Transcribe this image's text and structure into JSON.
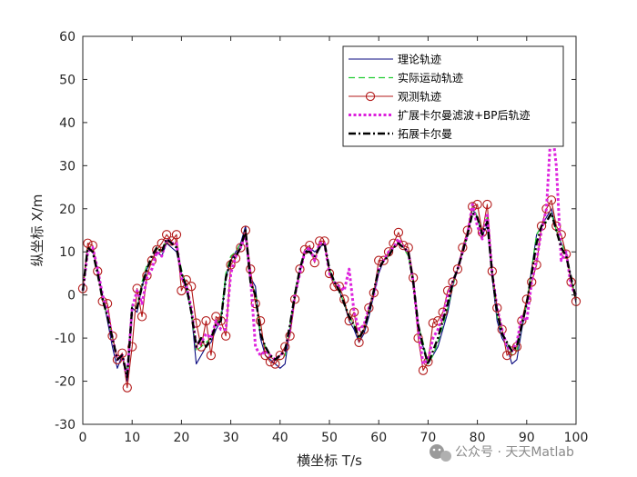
{
  "chart_data": {
    "type": "line",
    "xlabel": "横坐标 T/s",
    "ylabel": "纵坐标 X/m",
    "xlim": [
      0,
      100
    ],
    "ylim": [
      -30,
      60
    ],
    "xticks": [
      0,
      10,
      20,
      30,
      40,
      50,
      60,
      70,
      80,
      90,
      100
    ],
    "yticks": [
      -30,
      -20,
      -10,
      0,
      10,
      20,
      30,
      40,
      50,
      60
    ],
    "grid": false,
    "legend_position": "top-right",
    "series": [
      {
        "name": "理论轨迹",
        "color": "#0a0a80",
        "style": "solid",
        "x": [
          0,
          1,
          2,
          3,
          4,
          5,
          6,
          7,
          8,
          9,
          10,
          11,
          12,
          13,
          14,
          15,
          16,
          17,
          18,
          19,
          20,
          21,
          22,
          23,
          24,
          25,
          26,
          27,
          28,
          29,
          30,
          31,
          32,
          33,
          34,
          35,
          36,
          37,
          38,
          39,
          40,
          41,
          42,
          43,
          44,
          45,
          46,
          47,
          48,
          49,
          50,
          51,
          52,
          53,
          54,
          55,
          56,
          57,
          58,
          59,
          60,
          61,
          62,
          63,
          64,
          65,
          66,
          67,
          68,
          69,
          70,
          71,
          72,
          73,
          74,
          75,
          76,
          77,
          78,
          79,
          80,
          81,
          82,
          83,
          84,
          85,
          86,
          87,
          88,
          89,
          90,
          91,
          92,
          93,
          94,
          95,
          96,
          97,
          98,
          99,
          100
        ],
        "y": [
          2,
          11,
          10,
          6,
          0,
          -6,
          -12,
          -17,
          -14,
          -20,
          -3,
          -4,
          2,
          6,
          8,
          10,
          9,
          12,
          11,
          10,
          5,
          1,
          -4,
          -16,
          -14,
          -12,
          -11,
          -8,
          -6,
          4,
          8,
          10,
          12,
          16,
          4,
          2,
          -10,
          -14,
          -15,
          -16,
          -17,
          -16,
          -8,
          0,
          5,
          10,
          11,
          10,
          11,
          12,
          6,
          3,
          1,
          -2,
          -6,
          -8,
          -11,
          -9,
          -5,
          0,
          5,
          8,
          9,
          11,
          12,
          11,
          10,
          4,
          -8,
          -12,
          -16,
          -14,
          -12,
          -8,
          -4,
          2,
          6,
          10,
          14,
          20,
          18,
          14,
          16,
          4,
          -6,
          -10,
          -12,
          -16,
          -15,
          -8,
          -2,
          6,
          14,
          16,
          18,
          20,
          15,
          12,
          10,
          4,
          -2
        ]
      },
      {
        "name": "实际运动轨迹",
        "color": "#22cc33",
        "style": "dashed",
        "x": [
          0,
          1,
          2,
          3,
          4,
          5,
          6,
          7,
          8,
          9,
          10,
          11,
          12,
          13,
          14,
          15,
          16,
          17,
          18,
          19,
          20,
          21,
          22,
          23,
          24,
          25,
          26,
          27,
          28,
          29,
          30,
          31,
          32,
          33,
          34,
          35,
          36,
          37,
          38,
          39,
          40,
          41,
          42,
          43,
          44,
          45,
          46,
          47,
          48,
          49,
          50,
          51,
          52,
          53,
          54,
          55,
          56,
          57,
          58,
          59,
          60,
          61,
          62,
          63,
          64,
          65,
          66,
          67,
          68,
          69,
          70,
          71,
          72,
          73,
          74,
          75,
          76,
          77,
          78,
          79,
          80,
          81,
          82,
          83,
          84,
          85,
          86,
          87,
          88,
          89,
          90,
          91,
          92,
          93,
          94,
          95,
          96,
          97,
          98,
          99,
          100
        ],
        "y": [
          1,
          11,
          11,
          5,
          -1,
          -5,
          -10,
          -15,
          -14,
          -18,
          -2,
          -3,
          3,
          7,
          8,
          11,
          10,
          13,
          12,
          11,
          6,
          2,
          -4,
          -13,
          -12,
          -11,
          -10,
          -7,
          -5,
          5,
          9,
          10,
          12,
          14,
          2,
          1,
          -9,
          -12,
          -14,
          -15,
          -15,
          -14,
          -7,
          1,
          6,
          10,
          10,
          8,
          11,
          12,
          6,
          3,
          1,
          -2,
          -5,
          -7,
          -10,
          -8,
          -4,
          1,
          6,
          8,
          9,
          11,
          12,
          11,
          9,
          3,
          -7,
          -11,
          -16,
          -14,
          -11,
          -7,
          -3,
          2,
          6,
          10,
          14,
          21,
          18,
          15,
          18,
          5,
          -5,
          -9,
          -11,
          -14,
          -13,
          -7,
          -2,
          6,
          14,
          16,
          17,
          19,
          15,
          12,
          10,
          4,
          -1
        ]
      },
      {
        "name": "观测轨迹",
        "color": "#b31a1a",
        "style": "solid-circle",
        "x": [
          0,
          1,
          2,
          3,
          4,
          5,
          6,
          7,
          8,
          9,
          10,
          11,
          12,
          13,
          14,
          15,
          16,
          17,
          18,
          19,
          20,
          21,
          22,
          23,
          24,
          25,
          26,
          27,
          28,
          29,
          30,
          31,
          32,
          33,
          34,
          35,
          36,
          37,
          38,
          39,
          40,
          41,
          42,
          43,
          44,
          45,
          46,
          47,
          48,
          49,
          50,
          51,
          52,
          53,
          54,
          55,
          56,
          57,
          58,
          59,
          60,
          61,
          62,
          63,
          64,
          65,
          66,
          67,
          68,
          69,
          70,
          71,
          72,
          73,
          74,
          75,
          76,
          77,
          78,
          79,
          80,
          81,
          82,
          83,
          84,
          85,
          86,
          87,
          88,
          89,
          90,
          91,
          92,
          93,
          94,
          95,
          96,
          97,
          98,
          99,
          100
        ],
        "y": [
          1.5,
          12,
          11.5,
          5.5,
          -1.5,
          -2,
          -9.5,
          -15,
          -13.5,
          -21.5,
          -12,
          1.5,
          -5,
          4.5,
          8,
          10.5,
          12,
          14,
          12.5,
          14,
          1,
          3.5,
          2,
          -6.5,
          -12,
          -6,
          -14,
          -5,
          -6,
          -9.5,
          7,
          8.5,
          11,
          15,
          6,
          -2,
          -6,
          -14,
          -15.5,
          -16,
          -14,
          -12,
          -9.5,
          -1,
          6,
          10.5,
          11.5,
          7.5,
          12.5,
          12.5,
          5,
          2,
          2,
          -1,
          -6,
          -4,
          -11,
          -8,
          -3,
          0.5,
          8,
          8,
          10,
          12,
          14.5,
          11.5,
          11,
          4,
          -10,
          -17.5,
          -15.5,
          -6.5,
          -6,
          -4,
          1,
          3,
          6,
          11,
          15,
          20.5,
          21,
          14.5,
          21,
          5.5,
          -3,
          -8,
          -14,
          -13,
          -12,
          -6,
          -1,
          3,
          7,
          16,
          20,
          22,
          16,
          14,
          9.5,
          3,
          -1.5
        ]
      },
      {
        "name": "扩展卡尔曼滤波+BP后轨迹",
        "color": "#dd22dd",
        "style": "dotted",
        "x": [
          0,
          1,
          2,
          3,
          4,
          5,
          6,
          7,
          8,
          9,
          10,
          11,
          12,
          13,
          14,
          15,
          16,
          17,
          18,
          19,
          20,
          21,
          22,
          23,
          24,
          25,
          26,
          27,
          28,
          29,
          30,
          31,
          32,
          33,
          34,
          35,
          36,
          37,
          38,
          39,
          40,
          41,
          42,
          43,
          44,
          45,
          46,
          47,
          48,
          49,
          50,
          51,
          52,
          53,
          54,
          55,
          56,
          57,
          58,
          59,
          60,
          61,
          62,
          63,
          64,
          65,
          66,
          67,
          68,
          69,
          70,
          71,
          72,
          73,
          74,
          75,
          76,
          77,
          78,
          79,
          80,
          81,
          82,
          83,
          84,
          85,
          86,
          87,
          88,
          89,
          90,
          91,
          92,
          93,
          94,
          95,
          96,
          97,
          98,
          99,
          100
        ],
        "y": [
          1,
          10,
          11,
          6,
          0,
          -4,
          -10,
          -15,
          -14,
          -19,
          -3,
          1,
          -2,
          4,
          6,
          10,
          9,
          13,
          12,
          12,
          4,
          2,
          -3,
          -12,
          -11,
          -9,
          -10,
          -6,
          -8,
          -8,
          5,
          9,
          11,
          14,
          4,
          -12,
          -14,
          -13,
          -14,
          -15,
          -14,
          -13,
          -8,
          0,
          5,
          10,
          11,
          8,
          12,
          12,
          5,
          3,
          2,
          1,
          6,
          -4,
          -8,
          -7,
          -3,
          0,
          6,
          8,
          10,
          11,
          13,
          11,
          10,
          3,
          -8,
          -16,
          -15,
          -10,
          -8,
          -5,
          0,
          3,
          6,
          10,
          14,
          21,
          16,
          13,
          19,
          5,
          -3,
          -8,
          -12,
          -13,
          -11,
          -5,
          -6,
          3,
          8,
          15,
          20,
          40,
          30,
          8,
          10,
          2,
          0
        ]
      },
      {
        "name": "拓展卡尔曼",
        "color": "#000000",
        "style": "dash-dot",
        "x": [
          0,
          1,
          2,
          3,
          4,
          5,
          6,
          7,
          8,
          9,
          10,
          11,
          12,
          13,
          14,
          15,
          16,
          17,
          18,
          19,
          20,
          21,
          22,
          23,
          24,
          25,
          26,
          27,
          28,
          29,
          30,
          31,
          32,
          33,
          34,
          35,
          36,
          37,
          38,
          39,
          40,
          41,
          42,
          43,
          44,
          45,
          46,
          47,
          48,
          49,
          50,
          51,
          52,
          53,
          54,
          55,
          56,
          57,
          58,
          59,
          60,
          61,
          62,
          63,
          64,
          65,
          66,
          67,
          68,
          69,
          70,
          71,
          72,
          73,
          74,
          75,
          76,
          77,
          78,
          79,
          80,
          81,
          82,
          83,
          84,
          85,
          86,
          87,
          88,
          89,
          90,
          91,
          92,
          93,
          94,
          95,
          96,
          97,
          98,
          99,
          100
        ],
        "y": [
          1,
          11,
          10,
          5,
          -1,
          -5,
          -10,
          -15,
          -14,
          -19,
          -3,
          -3,
          2,
          6,
          9,
          11,
          10,
          13,
          12,
          11,
          5,
          2,
          -4,
          -12,
          -10,
          -12,
          -10,
          -7,
          -6,
          4,
          8,
          9,
          11,
          15,
          3,
          0,
          -9,
          -12,
          -14,
          -15,
          -14,
          -13,
          -7,
          0,
          6,
          10,
          10,
          9,
          11,
          12,
          6,
          3,
          1,
          -2,
          -5,
          -7,
          -10,
          -8,
          -4,
          1,
          6,
          8,
          9,
          11,
          12,
          11,
          10,
          3,
          -7,
          -12,
          -16,
          -13,
          -10,
          -6,
          -2,
          3,
          6,
          10,
          14,
          19,
          18,
          14,
          17,
          5,
          -4,
          -9,
          -11,
          -13,
          -12,
          -7,
          -2,
          5,
          12,
          16,
          17,
          19,
          15,
          11,
          9,
          4,
          -1
        ]
      }
    ]
  },
  "watermark": {
    "text": "公众号 · 天天Matlab",
    "icon": "wechat-icon"
  }
}
